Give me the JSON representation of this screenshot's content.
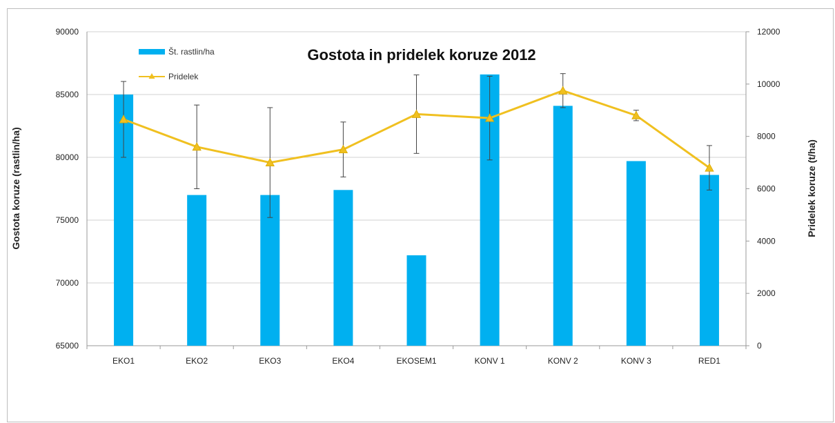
{
  "chart_data": {
    "type": "bar",
    "title": "Gostota in pridelek koruze 2012",
    "categories": [
      "EKO1",
      "EKO2",
      "EKO3",
      "EKO4",
      "EKOSEM1",
      "KONV 1",
      "KONV 2",
      "KONV 3",
      "RED1"
    ],
    "ylabel": "Gostota koruze (rastlin/ha)",
    "y2label": "Pridelek  koruze (t/ha)",
    "ylim": [
      65000,
      90000
    ],
    "y2lim": [
      0,
      12000
    ],
    "yticks": [
      "65000",
      "70000",
      "75000",
      "80000",
      "85000",
      "90000"
    ],
    "y2ticks": [
      "0",
      "2000",
      "4000",
      "6000",
      "8000",
      "10000",
      "12000"
    ],
    "grid": true,
    "legend_position": "top-left",
    "series": [
      {
        "name": "Št. rastlin/ha",
        "type": "bar",
        "axis": "left",
        "color": "#00b0f0",
        "values": [
          85000,
          77000,
          77000,
          77400,
          72200,
          86600,
          84100,
          79700,
          78600
        ]
      },
      {
        "name": "Pridelek",
        "type": "line",
        "axis": "right",
        "color": "#f0c020",
        "marker": "triangle",
        "values": [
          8650,
          7600,
          7000,
          7500,
          8850,
          8700,
          9750,
          8800,
          6800
        ],
        "error": [
          1450,
          1600,
          2100,
          1050,
          1500,
          1600,
          650,
          200,
          850
        ]
      }
    ]
  }
}
